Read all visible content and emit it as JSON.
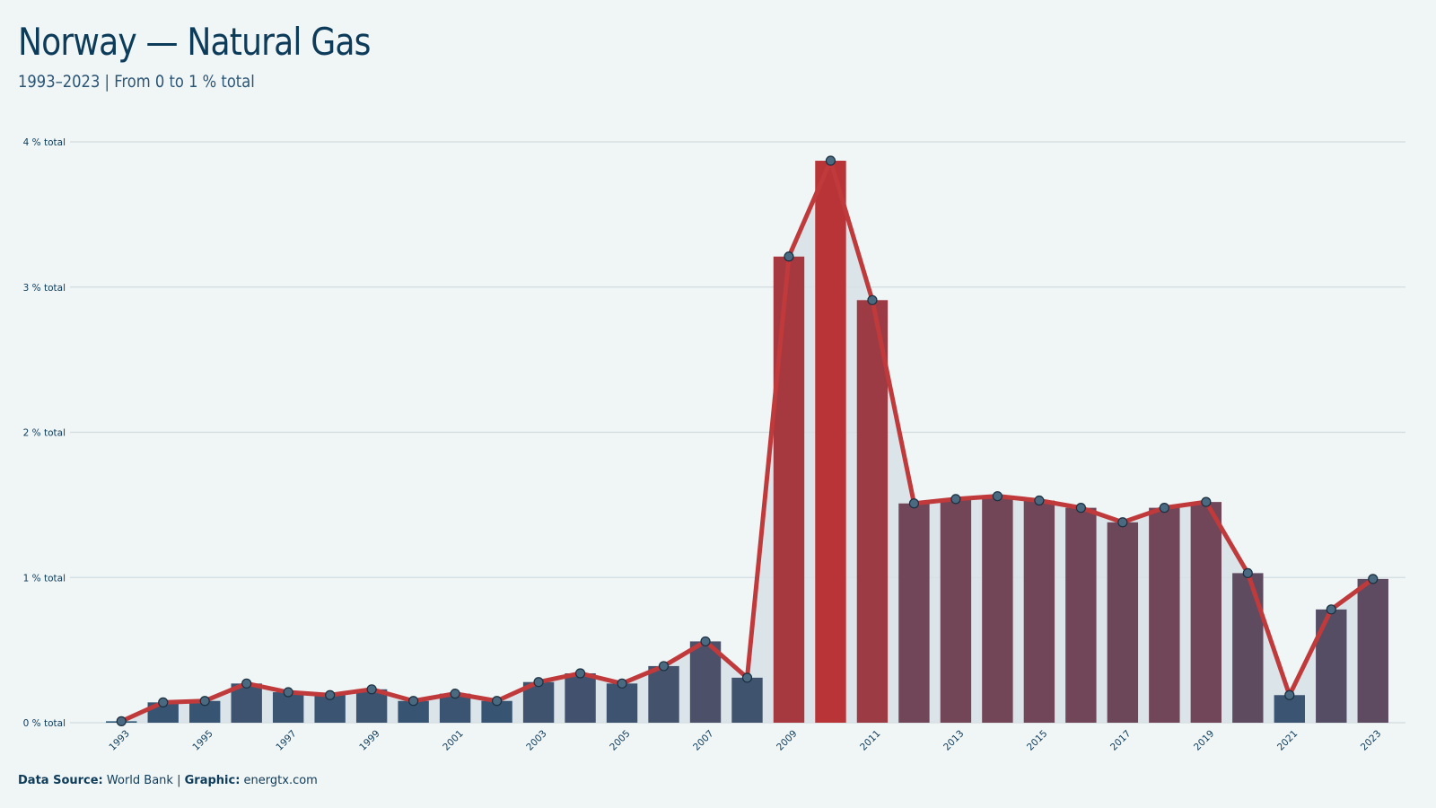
{
  "title": "Norway — Natural Gas",
  "subtitle": "1993–2023 | From 0 to 1 % total",
  "footer": {
    "source_label": "Data Source:",
    "source_value": "World Bank",
    "separator": "|",
    "graphic_label": "Graphic:",
    "graphic_value": "energtx.com"
  },
  "colors": {
    "background": "#f0f5f5",
    "low_bar": "#2b5878",
    "high_bar": "#b83437",
    "line": "#c0393b",
    "area_fill": "#d7e2e6",
    "gridline": "#d3dcdf"
  },
  "chart_data": {
    "type": "bar",
    "x": [
      1993,
      1994,
      1995,
      1996,
      1997,
      1998,
      1999,
      2000,
      2001,
      2002,
      2003,
      2004,
      2005,
      2006,
      2007,
      2008,
      2009,
      2010,
      2011,
      2012,
      2013,
      2014,
      2015,
      2016,
      2017,
      2018,
      2019,
      2020,
      2021,
      2022,
      2023
    ],
    "values": [
      0.01,
      0.14,
      0.15,
      0.27,
      0.21,
      0.19,
      0.23,
      0.15,
      0.2,
      0.15,
      0.28,
      0.34,
      0.27,
      0.39,
      0.56,
      0.31,
      3.21,
      3.87,
      2.91,
      1.51,
      1.54,
      1.56,
      1.53,
      1.48,
      1.38,
      1.48,
      1.52,
      1.03,
      0.19,
      0.78,
      0.99
    ],
    "x_tick_labels": [
      "1993",
      "1995",
      "1997",
      "1999",
      "2001",
      "2003",
      "2005",
      "2007",
      "2009",
      "2011",
      "2013",
      "2015",
      "2017",
      "2019",
      "2021",
      "2023"
    ],
    "y_ticks": [
      0,
      1,
      2,
      3,
      4
    ],
    "y_tick_labels": [
      "0 % total",
      "1 % total",
      "2 % total",
      "3 % total",
      "4 % total"
    ],
    "ylim": [
      0,
      4
    ],
    "xlabel": "",
    "ylabel": "",
    "grid": true,
    "overlay": "line with markers and shaded area following bar values",
    "color_scale": "bar color interpolates from dark blue (low) to red (high)"
  }
}
